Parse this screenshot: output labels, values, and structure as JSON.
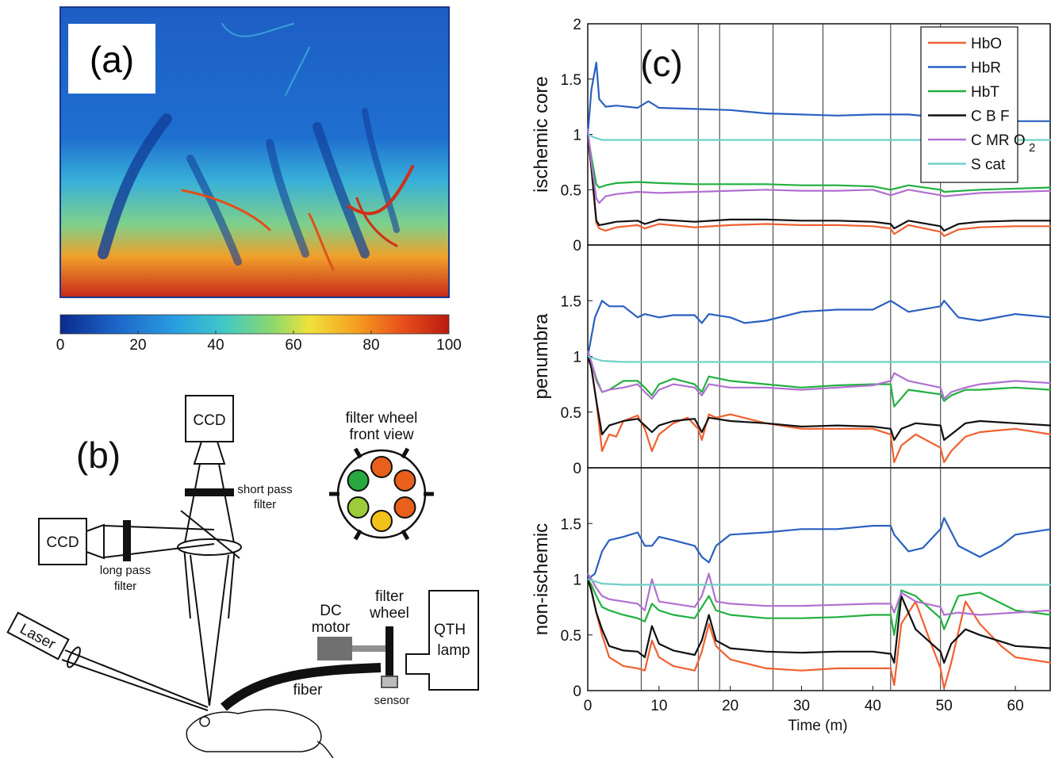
{
  "panel_a": {
    "label": "(a)",
    "colorbar_ticks": [
      "0",
      "20",
      "40",
      "60",
      "80",
      "100"
    ],
    "colorbar_colors": [
      "#0a2a8c",
      "#1c63c8",
      "#2aa0e0",
      "#3fc8c8",
      "#8fd96a",
      "#f0e23a",
      "#f5a020",
      "#e8501c",
      "#b81a10"
    ]
  },
  "panel_b": {
    "label": "(b)",
    "ccd_top": "CCD",
    "ccd_left": "CCD",
    "short_pass_1": "short pass",
    "short_pass_2": "filter",
    "long_pass_1": "long pass",
    "long_pass_2": "filter",
    "filter_wheel_1": "filter wheel",
    "filter_wheel_2": "front view",
    "dc_1": "DC",
    "dc_2": "motor",
    "fw_1": "filter",
    "fw_2": "wheel",
    "qth_1": "QTH",
    "qth_2": "lamp",
    "fiber": "fiber",
    "sensor": "sensor",
    "laser": "Laser",
    "wheel_colors": [
      "#e8601c",
      "#e8601c",
      "#e8601c",
      "#f2c21a",
      "#9ccc3a",
      "#2aa840"
    ]
  },
  "panel_c": {
    "label": "(c)",
    "xlabel": "Time (m)",
    "legend": [
      "HbO",
      "HbR",
      "HbT",
      "C B F",
      "C MR O",
      "S cat"
    ],
    "legend_sub": "2",
    "colors": {
      "HbO": "#f06030",
      "HbR": "#2a60c0",
      "HbT": "#22b040",
      "CBF": "#111111",
      "CMRO2": "#b070d0",
      "Scat": "#70d0c8"
    }
  },
  "chart_data": [
    {
      "type": "line",
      "title": "",
      "xlabel": "",
      "ylabel": "ischemic core",
      "xlim": [
        0,
        65
      ],
      "ylim": [
        0,
        2
      ],
      "x_ticks": [],
      "y_ticks": [
        "0",
        "0.5",
        "1",
        "1.5",
        "2"
      ],
      "vlines": [
        7.5,
        15.5,
        18.5,
        26,
        33,
        42.5,
        49.5
      ],
      "series": [
        {
          "name": "HbO",
          "x": [
            0,
            0.5,
            1.2,
            1.6,
            2.5,
            4,
            7,
            8,
            10,
            15,
            20,
            25,
            30,
            35,
            40,
            42.5,
            43,
            45,
            49.5,
            50,
            52,
            55,
            60,
            65
          ],
          "values": [
            1.0,
            0.7,
            0.2,
            0.15,
            0.13,
            0.16,
            0.18,
            0.15,
            0.19,
            0.16,
            0.18,
            0.19,
            0.18,
            0.18,
            0.17,
            0.15,
            0.1,
            0.18,
            0.12,
            0.08,
            0.14,
            0.16,
            0.17,
            0.17
          ]
        },
        {
          "name": "HbR",
          "x": [
            0,
            0.5,
            1.2,
            1.6,
            2.5,
            4,
            7,
            8.5,
            10,
            15,
            20,
            25,
            30,
            35,
            40,
            45,
            50,
            55,
            60,
            65
          ],
          "values": [
            1.0,
            1.4,
            1.65,
            1.32,
            1.25,
            1.26,
            1.24,
            1.3,
            1.24,
            1.23,
            1.22,
            1.19,
            1.18,
            1.17,
            1.18,
            1.18,
            1.15,
            1.12,
            1.12,
            1.12
          ]
        },
        {
          "name": "HbT",
          "x": [
            0,
            0.5,
            1.2,
            1.6,
            2.5,
            4,
            7,
            10,
            15,
            20,
            25,
            30,
            35,
            40,
            42.5,
            45,
            49.5,
            50,
            55,
            60,
            65
          ],
          "values": [
            1.0,
            0.8,
            0.55,
            0.52,
            0.54,
            0.56,
            0.57,
            0.56,
            0.55,
            0.55,
            0.55,
            0.54,
            0.54,
            0.53,
            0.5,
            0.54,
            0.5,
            0.48,
            0.5,
            0.51,
            0.52
          ]
        },
        {
          "name": "C B F",
          "x": [
            0,
            0.5,
            1.2,
            1.6,
            2.5,
            4,
            7,
            8,
            10,
            15,
            20,
            25,
            30,
            35,
            40,
            42.5,
            43,
            45,
            49.5,
            50,
            52,
            55,
            60,
            65
          ],
          "values": [
            1.0,
            0.7,
            0.22,
            0.18,
            0.19,
            0.21,
            0.22,
            0.19,
            0.23,
            0.21,
            0.23,
            0.23,
            0.22,
            0.22,
            0.21,
            0.19,
            0.15,
            0.22,
            0.17,
            0.13,
            0.19,
            0.21,
            0.22,
            0.22
          ]
        },
        {
          "name": "C MR O2",
          "x": [
            0,
            0.5,
            1.2,
            1.6,
            2.5,
            4,
            7,
            10,
            15,
            20,
            25,
            30,
            35,
            40,
            42.5,
            45,
            49.5,
            50,
            55,
            60,
            65
          ],
          "values": [
            1.05,
            0.75,
            0.42,
            0.38,
            0.44,
            0.46,
            0.48,
            0.47,
            0.48,
            0.49,
            0.5,
            0.49,
            0.49,
            0.5,
            0.45,
            0.5,
            0.45,
            0.44,
            0.47,
            0.48,
            0.49
          ]
        },
        {
          "name": "S cat",
          "x": [
            0,
            1,
            2,
            5,
            65
          ],
          "values": [
            1.0,
            0.97,
            0.95,
            0.95,
            0.95
          ]
        }
      ]
    },
    {
      "type": "line",
      "title": "",
      "xlabel": "",
      "ylabel": "penumbra",
      "xlim": [
        0,
        65
      ],
      "ylim": [
        0,
        2
      ],
      "x_ticks": [],
      "y_ticks": [
        "0",
        "0.5",
        "1",
        "1.5"
      ],
      "vlines": [
        7.5,
        15.5,
        18.5,
        26,
        33,
        42.5,
        49.5
      ],
      "series": [
        {
          "name": "HbO",
          "x": [
            0,
            0.5,
            1.2,
            2,
            3,
            4,
            5,
            7,
            8,
            9,
            10,
            12,
            14,
            15.5,
            16,
            17,
            18,
            20,
            25,
            30,
            35,
            40,
            42.5,
            43,
            44,
            46,
            49.5,
            50,
            51,
            53,
            55,
            60,
            65
          ],
          "values": [
            1.0,
            0.9,
            0.6,
            0.15,
            0.3,
            0.28,
            0.42,
            0.47,
            0.35,
            0.15,
            0.3,
            0.4,
            0.45,
            0.35,
            0.25,
            0.48,
            0.45,
            0.48,
            0.4,
            0.35,
            0.35,
            0.35,
            0.3,
            0.05,
            0.2,
            0.3,
            0.18,
            0.05,
            0.15,
            0.28,
            0.32,
            0.35,
            0.3
          ]
        },
        {
          "name": "HbR",
          "x": [
            0,
            1,
            2,
            3,
            5,
            7,
            8,
            10,
            12,
            15,
            16,
            17,
            20,
            22,
            25,
            30,
            35,
            40,
            42.5,
            43,
            45,
            49.5,
            50,
            52,
            55,
            60,
            65
          ],
          "values": [
            1.0,
            1.35,
            1.5,
            1.45,
            1.45,
            1.35,
            1.38,
            1.35,
            1.37,
            1.37,
            1.3,
            1.38,
            1.35,
            1.3,
            1.32,
            1.4,
            1.42,
            1.42,
            1.5,
            1.48,
            1.4,
            1.45,
            1.5,
            1.35,
            1.32,
            1.38,
            1.35
          ]
        },
        {
          "name": "HbT",
          "x": [
            0,
            0.5,
            1.2,
            2,
            3,
            5,
            7,
            8,
            9,
            10,
            12,
            15,
            16,
            17,
            20,
            25,
            30,
            35,
            40,
            42.5,
            43,
            45,
            49.5,
            50,
            51,
            53,
            55,
            60,
            65
          ],
          "values": [
            1.0,
            0.95,
            0.8,
            0.68,
            0.7,
            0.78,
            0.78,
            0.72,
            0.65,
            0.75,
            0.8,
            0.75,
            0.68,
            0.82,
            0.78,
            0.75,
            0.72,
            0.74,
            0.75,
            0.75,
            0.55,
            0.7,
            0.66,
            0.6,
            0.65,
            0.7,
            0.7,
            0.72,
            0.7
          ]
        },
        {
          "name": "C B F",
          "x": [
            0,
            0.5,
            1.2,
            2,
            3,
            5,
            7,
            8,
            9,
            10,
            12,
            15,
            16,
            17,
            20,
            25,
            30,
            35,
            40,
            42.5,
            43,
            44,
            46,
            49.5,
            50,
            51,
            53,
            55,
            60,
            65
          ],
          "values": [
            1.0,
            0.9,
            0.6,
            0.3,
            0.38,
            0.42,
            0.44,
            0.38,
            0.32,
            0.38,
            0.42,
            0.44,
            0.32,
            0.45,
            0.42,
            0.4,
            0.37,
            0.38,
            0.37,
            0.35,
            0.25,
            0.35,
            0.4,
            0.38,
            0.25,
            0.3,
            0.4,
            0.42,
            0.4,
            0.38
          ]
        },
        {
          "name": "C MR O2",
          "x": [
            0,
            0.5,
            1.2,
            2,
            3,
            5,
            7,
            8,
            9,
            10,
            12,
            15,
            16,
            17,
            20,
            25,
            30,
            35,
            40,
            42.5,
            43,
            45,
            49.5,
            50,
            51,
            53,
            55,
            60,
            65
          ],
          "values": [
            1.05,
            0.95,
            0.78,
            0.68,
            0.7,
            0.72,
            0.75,
            0.68,
            0.62,
            0.7,
            0.75,
            0.72,
            0.65,
            0.75,
            0.72,
            0.72,
            0.7,
            0.72,
            0.74,
            0.78,
            0.85,
            0.78,
            0.72,
            0.62,
            0.68,
            0.72,
            0.75,
            0.78,
            0.76
          ]
        },
        {
          "name": "S cat",
          "x": [
            0,
            1,
            2,
            5,
            65
          ],
          "values": [
            1.0,
            0.98,
            0.96,
            0.95,
            0.95
          ]
        }
      ]
    },
    {
      "type": "line",
      "title": "",
      "xlabel": "Time (m)",
      "ylabel": "non-ischemic",
      "xlim": [
        0,
        65
      ],
      "ylim": [
        0,
        2
      ],
      "x_ticks": [
        "0",
        "10",
        "20",
        "30",
        "40",
        "50",
        "60"
      ],
      "y_ticks": [
        "0",
        "0.5",
        "1",
        "1.5"
      ],
      "vlines": [
        7.5,
        15.5,
        18.5,
        26,
        33,
        42.5,
        49.5
      ],
      "series": [
        {
          "name": "HbO",
          "x": [
            0,
            0.5,
            1.2,
            2,
            3,
            5,
            7,
            8,
            9,
            10,
            12,
            15,
            16,
            17,
            18,
            20,
            25,
            30,
            35,
            40,
            42.5,
            43,
            44,
            46,
            48,
            49.5,
            50,
            51,
            53,
            55,
            58,
            60,
            65
          ],
          "values": [
            1.0,
            0.9,
            0.7,
            0.5,
            0.3,
            0.22,
            0.2,
            0.18,
            0.45,
            0.3,
            0.22,
            0.18,
            0.35,
            0.6,
            0.4,
            0.28,
            0.2,
            0.18,
            0.2,
            0.2,
            0.2,
            0.05,
            0.6,
            0.8,
            0.45,
            0.2,
            0.02,
            0.25,
            0.8,
            0.6,
            0.4,
            0.3,
            0.25
          ]
        },
        {
          "name": "HbR",
          "x": [
            0,
            1,
            2,
            3,
            5,
            7,
            8,
            9,
            10,
            12,
            15,
            16,
            17,
            18,
            20,
            25,
            30,
            35,
            40,
            42.5,
            43,
            45,
            47,
            49.5,
            50,
            52,
            55,
            58,
            60,
            65
          ],
          "values": [
            1.0,
            1.05,
            1.25,
            1.35,
            1.38,
            1.42,
            1.3,
            1.3,
            1.38,
            1.35,
            1.3,
            1.2,
            1.15,
            1.3,
            1.4,
            1.42,
            1.45,
            1.45,
            1.48,
            1.48,
            1.4,
            1.25,
            1.28,
            1.45,
            1.55,
            1.3,
            1.2,
            1.3,
            1.4,
            1.45
          ]
        },
        {
          "name": "HbT",
          "x": [
            0,
            0.5,
            1.2,
            2,
            3,
            5,
            7,
            8,
            9,
            10,
            12,
            15,
            16,
            17,
            18,
            20,
            25,
            30,
            35,
            40,
            42.5,
            43,
            44,
            46,
            49.5,
            50,
            52,
            55,
            60,
            65
          ],
          "values": [
            1.0,
            0.95,
            0.85,
            0.75,
            0.72,
            0.68,
            0.65,
            0.62,
            0.78,
            0.72,
            0.68,
            0.65,
            0.75,
            0.85,
            0.72,
            0.68,
            0.65,
            0.65,
            0.66,
            0.68,
            0.68,
            0.5,
            0.9,
            0.85,
            0.65,
            0.55,
            0.85,
            0.88,
            0.72,
            0.68
          ]
        },
        {
          "name": "C B F",
          "x": [
            0,
            0.5,
            1.2,
            2,
            3,
            5,
            7,
            8,
            9,
            10,
            12,
            15,
            16,
            17,
            18,
            20,
            25,
            30,
            35,
            40,
            42.5,
            43,
            44,
            46,
            49.5,
            50,
            51,
            53,
            55,
            60,
            65
          ],
          "values": [
            1.0,
            0.9,
            0.7,
            0.55,
            0.4,
            0.36,
            0.35,
            0.3,
            0.58,
            0.42,
            0.36,
            0.32,
            0.45,
            0.68,
            0.45,
            0.38,
            0.35,
            0.34,
            0.35,
            0.35,
            0.33,
            0.25,
            0.85,
            0.55,
            0.35,
            0.25,
            0.42,
            0.55,
            0.5,
            0.4,
            0.38
          ]
        },
        {
          "name": "C MR O2",
          "x": [
            0,
            0.5,
            1.2,
            2,
            3,
            5,
            7,
            8,
            9,
            10,
            12,
            15,
            16,
            17,
            18,
            20,
            25,
            30,
            35,
            40,
            42.5,
            43,
            44,
            46,
            49.5,
            50,
            52,
            55,
            60,
            65
          ],
          "values": [
            1.05,
            1.0,
            0.92,
            0.85,
            0.82,
            0.8,
            0.78,
            0.72,
            1.0,
            0.8,
            0.78,
            0.75,
            0.85,
            1.05,
            0.8,
            0.78,
            0.76,
            0.76,
            0.77,
            0.78,
            0.78,
            0.7,
            0.88,
            0.8,
            0.75,
            0.68,
            0.7,
            0.68,
            0.7,
            0.72
          ]
        },
        {
          "name": "S cat",
          "x": [
            0,
            1,
            2,
            5,
            65
          ],
          "values": [
            1.0,
            0.98,
            0.96,
            0.95,
            0.95
          ]
        }
      ]
    }
  ]
}
